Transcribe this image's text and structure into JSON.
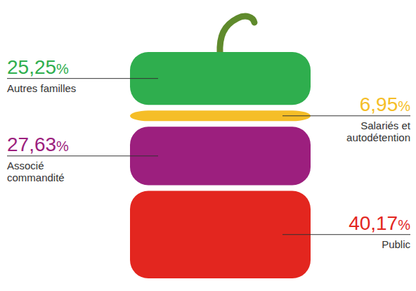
{
  "chart_data": {
    "type": "bar",
    "stacked": true,
    "categories": [
      "Autres familles",
      "Salariés et autodétention",
      "Associé commandité",
      "Public"
    ],
    "values": [
      25.25,
      6.95,
      27.63,
      40.17
    ],
    "value_labels": [
      "25,25%",
      "6,95%",
      "27,63%",
      "40,17%"
    ],
    "colors": [
      "#2fae4e",
      "#f5be28",
      "#9c1f7e",
      "#e3261f"
    ],
    "data_labels": true,
    "tick_labels": false
  }
}
